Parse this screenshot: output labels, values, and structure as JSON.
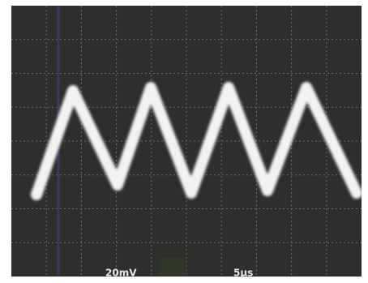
{
  "labels": {
    "volts_per_div": "20mV",
    "time_per_div": "5µs"
  }
}
